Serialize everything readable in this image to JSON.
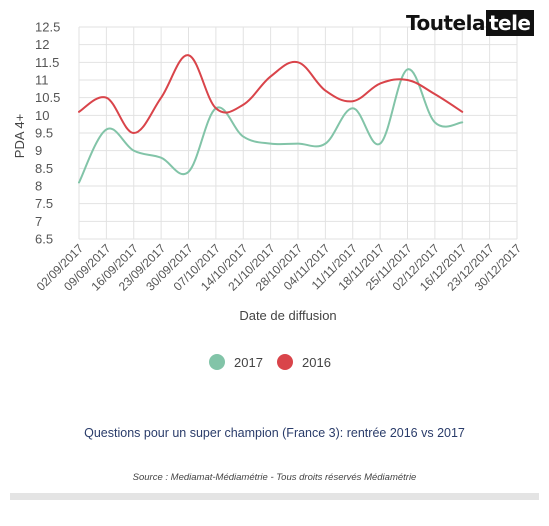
{
  "logo": {
    "part1": "Toutela",
    "part2": "tele"
  },
  "chart_data": {
    "type": "line",
    "title": "",
    "subtitle": "Questions pour un super champion (France 3): rentrée 2016 vs 2017",
    "source": "Source : Mediamat-Médiamétrie - Tous droits réservés Médiamétrie",
    "xlabel": "Date de diffusion",
    "ylabel": "PDA 4+",
    "ylim": [
      6.5,
      12.5
    ],
    "y_ticks": [
      "6.5",
      "7",
      "7.5",
      "8",
      "8.5",
      "9",
      "9.5",
      "10",
      "10.5",
      "11",
      "11.5",
      "12",
      "12.5"
    ],
    "categories": [
      "02/09/2017",
      "09/09/2017",
      "16/09/2017",
      "23/09/2017",
      "30/09/2017",
      "07/10/2017",
      "14/10/2017",
      "21/10/2017",
      "28/10/2017",
      "04/11/2017",
      "11/11/2017",
      "18/11/2017",
      "25/11/2017",
      "02/12/2017",
      "16/12/2017",
      "23/12/2017",
      "30/12/2017"
    ],
    "grid": true,
    "legend_position": "bottom",
    "series": [
      {
        "name": "2017",
        "color": "#82c4a8",
        "values": [
          8.1,
          9.6,
          9.0,
          8.8,
          8.4,
          10.2,
          9.4,
          9.2,
          9.2,
          9.2,
          10.2,
          9.2,
          11.3,
          9.8,
          9.8,
          null,
          null
        ]
      },
      {
        "name": "2016",
        "color": "#d9444a",
        "values": [
          10.1,
          10.5,
          9.5,
          10.5,
          11.7,
          10.2,
          10.3,
          11.1,
          11.5,
          10.7,
          10.4,
          10.9,
          11.0,
          10.6,
          10.1,
          null,
          null
        ]
      }
    ]
  }
}
